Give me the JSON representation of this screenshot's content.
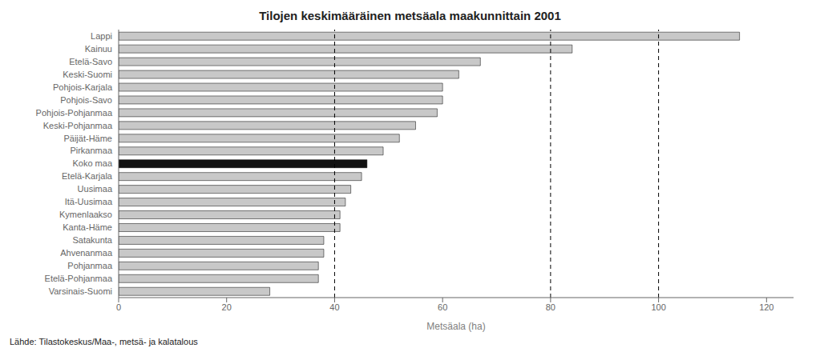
{
  "chart_data": {
    "type": "bar",
    "orientation": "horizontal",
    "title": "Tilojen keskimääräinen metsäala maakunnittain 2001",
    "xlabel": "Metsäala (ha)",
    "source": "Lähde: Tilastokeskus/Maa-, metsä- ja kalatalous",
    "categories": [
      "Lappi",
      "Kainuu",
      "Etelä-Savo",
      "Keski-Suomi",
      "Pohjois-Karjala",
      "Pohjois-Savo",
      "Pohjois-Pohjanmaa",
      "Keski-Pohjanmaa",
      "Päijät-Häme",
      "Pirkanmaa",
      "Koko maa",
      "Etelä-Karjala",
      "Uusimaa",
      "Itä-Uusimaa",
      "Kymenlaakso",
      "Kanta-Häme",
      "Satakunta",
      "Ahvenanmaa",
      "Pohjanmaa",
      "Etelä-Pohjanmaa",
      "Varsinais-Suomi"
    ],
    "values": [
      115,
      84,
      67,
      63,
      60,
      60,
      59,
      55,
      52,
      49,
      46,
      45,
      43,
      42,
      41,
      41,
      38,
      38,
      37,
      37,
      28
    ],
    "colors": [
      "#c8c8c8",
      "#c8c8c8",
      "#c8c8c8",
      "#c8c8c8",
      "#c8c8c8",
      "#c8c8c8",
      "#c8c8c8",
      "#c8c8c8",
      "#c8c8c8",
      "#c8c8c8",
      "#111111",
      "#c8c8c8",
      "#c8c8c8",
      "#c8c8c8",
      "#c8c8c8",
      "#c8c8c8",
      "#c8c8c8",
      "#c8c8c8",
      "#c8c8c8",
      "#c8c8c8",
      "#c8c8c8"
    ],
    "xlim": [
      0,
      125
    ],
    "xticks": [
      0,
      20,
      40,
      60,
      80,
      100,
      120
    ],
    "reference_lines": [
      40,
      80,
      100
    ],
    "grid": false
  }
}
